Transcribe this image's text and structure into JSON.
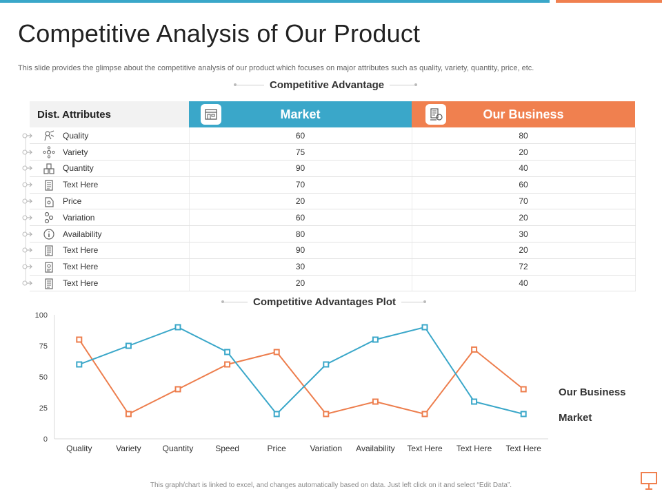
{
  "title": "Competitive Analysis of Our Product",
  "subtitle": "This slide provides the glimpse about the competitive analysis of our product which focuses on major attributes such as quality, variety,  quantity, price, etc.",
  "section_table": "Competitive Advantage",
  "section_plot": "Competitive Advantages Plot",
  "table": {
    "headers": {
      "attributes": "Dist. Attributes",
      "market": "Market",
      "business": "Our Business"
    },
    "rows": [
      {
        "name": "Quality",
        "icon": "quality-icon",
        "market": "60",
        "business": "80"
      },
      {
        "name": "Variety",
        "icon": "variety-icon",
        "market": "75",
        "business": "20"
      },
      {
        "name": "Quantity",
        "icon": "quantity-icon",
        "market": "90",
        "business": "40"
      },
      {
        "name": "Text Here",
        "icon": "document-icon",
        "market": "70",
        "business": "60"
      },
      {
        "name": "Price",
        "icon": "price-tag-icon",
        "market": "20",
        "business": "70"
      },
      {
        "name": "Variation",
        "icon": "variation-icon",
        "market": "60",
        "business": "20"
      },
      {
        "name": "Availability",
        "icon": "info-icon",
        "market": "80",
        "business": "30"
      },
      {
        "name": "Text Here",
        "icon": "document-icon",
        "market": "90",
        "business": "20"
      },
      {
        "name": "Text Here",
        "icon": "report-icon",
        "market": "30",
        "business": "72"
      },
      {
        "name": "Text Here",
        "icon": "document-icon",
        "market": "20",
        "business": "40"
      }
    ]
  },
  "chart_data": {
    "type": "line",
    "title": "Competitive Advantages Plot",
    "categories": [
      "Quality",
      "Variety",
      "Quantity",
      "Speed",
      "Price",
      "Variation",
      "Availability",
      "Text Here",
      "Text Here",
      "Text Here"
    ],
    "series": [
      {
        "name": "Our  Business",
        "color": "#ed7d4c",
        "values": [
          80,
          20,
          40,
          60,
          70,
          20,
          30,
          20,
          72,
          40
        ]
      },
      {
        "name": "Market",
        "color": "#3aa7c9",
        "values": [
          60,
          75,
          90,
          70,
          20,
          60,
          80,
          90,
          30,
          20
        ]
      }
    ],
    "ylim": [
      0,
      100
    ],
    "yticks": [
      "0",
      "25",
      "50",
      "75",
      "100"
    ],
    "legend": "right",
    "grid": false
  },
  "colors": {
    "market": "#3aa7c9",
    "business": "#f0804f"
  },
  "header_icons": {
    "market": "store-icon",
    "business": "business-icon"
  },
  "footnote": "This graph/chart is linked to excel, and changes automatically based on data. Just left click on it and select “Edit Data”."
}
